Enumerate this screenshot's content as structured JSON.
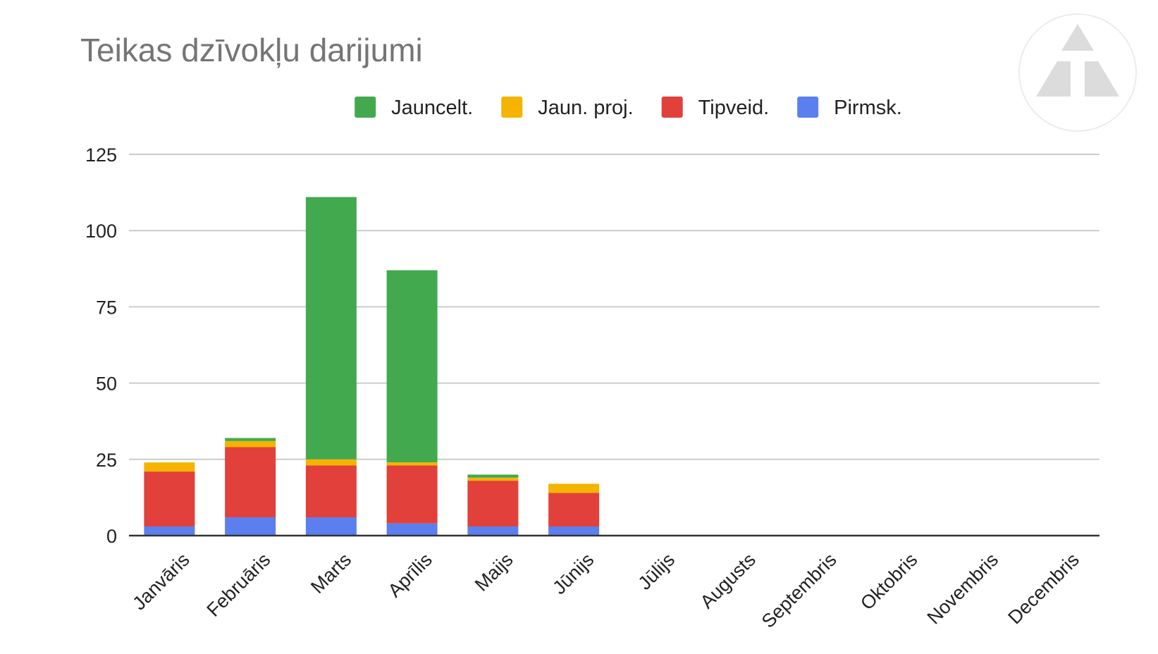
{
  "chart_data": {
    "type": "bar",
    "stacked": true,
    "title": "Teikas dzīvokļu darijumi",
    "xlabel": "",
    "ylabel": "",
    "ylim": [
      0,
      125
    ],
    "yticks": [
      0,
      25,
      50,
      75,
      100,
      125
    ],
    "grid": true,
    "legend_position": "top",
    "categories": [
      "Janvāris",
      "Februāris",
      "Marts",
      "Aprīlis",
      "Maijs",
      "Jūnijs",
      "Jūlijs",
      "Augusts",
      "Septembris",
      "Oktobris",
      "Novembris",
      "Decembris"
    ],
    "series": [
      {
        "name": "Pirmsk.",
        "color": "#5b7fef",
        "values": [
          3,
          6,
          6,
          4,
          3,
          3,
          0,
          0,
          0,
          0,
          0,
          0
        ]
      },
      {
        "name": "Tipveid.",
        "color": "#e2403a",
        "values": [
          18,
          23,
          17,
          19,
          15,
          11,
          0,
          0,
          0,
          0,
          0,
          0
        ]
      },
      {
        "name": "Jaun. proj.",
        "color": "#f4b400",
        "values": [
          3,
          2,
          2,
          1,
          1,
          3,
          0,
          0,
          0,
          0,
          0,
          0
        ]
      },
      {
        "name": "Jauncelt.",
        "color": "#43a94f",
        "values": [
          0,
          1,
          86,
          63,
          1,
          0,
          0,
          0,
          0,
          0,
          0,
          0
        ]
      }
    ],
    "legend_order": [
      "Jauncelt.",
      "Jaun. proj.",
      "Tipveid.",
      "Pirmsk."
    ]
  },
  "watermark": {
    "icon": "triangle-logo-icon"
  }
}
